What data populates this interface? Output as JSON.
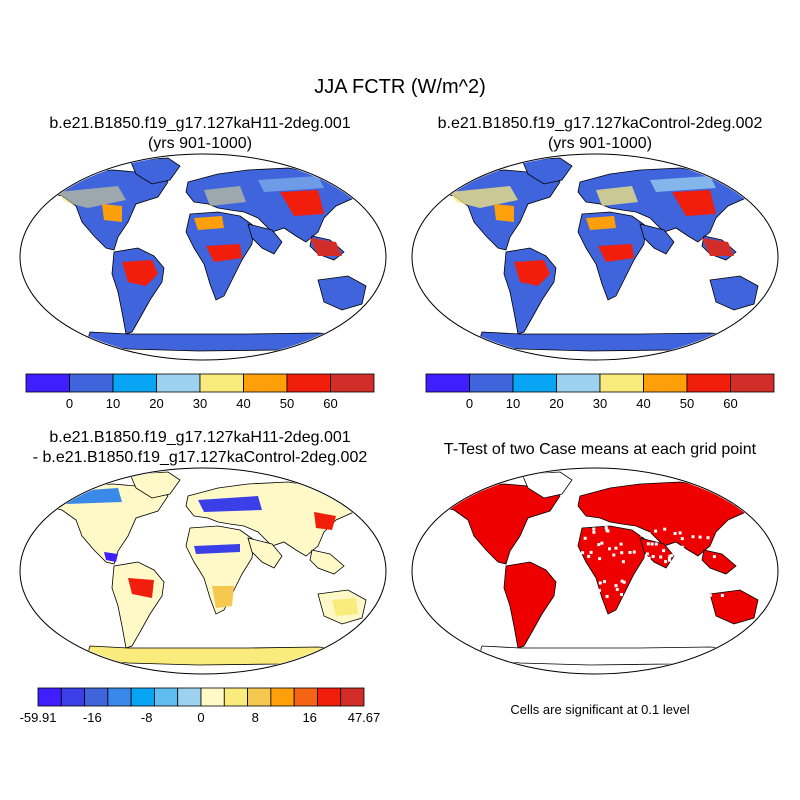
{
  "figure": {
    "title": "JJA FCTR (W/m^2)",
    "panels": [
      {
        "id": "case1",
        "title": "b.e21.B1850.f19_g17.127kaH11-2deg.001",
        "subtitle": "(yrs 901-1000)"
      },
      {
        "id": "case2",
        "title": "b.e21.B1850.f19_g17.127kaControl-2deg.002",
        "subtitle": "(yrs 901-1000)"
      },
      {
        "id": "diff",
        "title": "b.e21.B1850.f19_g17.127kaH11-2deg.001",
        "subtitle": "- b.e21.B1850.f19_g17.127kaControl-2deg.002"
      },
      {
        "id": "ttest",
        "title": "T-Test of two Case means at each grid point",
        "note": "Cells are significant at 0.1 level"
      }
    ],
    "colorbars": {
      "abs": {
        "labels": [
          "0",
          "10",
          "20",
          "30",
          "40",
          "50",
          "60"
        ],
        "colors": [
          "#3f1fff",
          "#3f64dc",
          "#08a5f5",
          "#9dd1f0",
          "#faeb7d",
          "#ffa00a",
          "#f01e0a",
          "#d22d28"
        ]
      },
      "diff": {
        "labels": [
          "-59.91",
          "-16",
          "-8",
          "0",
          "8",
          "16",
          "47.67"
        ],
        "colors": [
          "#3f1fff",
          "#3a3fe8",
          "#3f64dc",
          "#3a88e8",
          "#08a5f5",
          "#5fbdf0",
          "#9dd1f0",
          "#fff9c8",
          "#faeb7d",
          "#f5c850",
          "#ffa00a",
          "#f56414",
          "#f01e0a",
          "#d22d28"
        ]
      }
    },
    "significance_color": "#ee0000"
  }
}
